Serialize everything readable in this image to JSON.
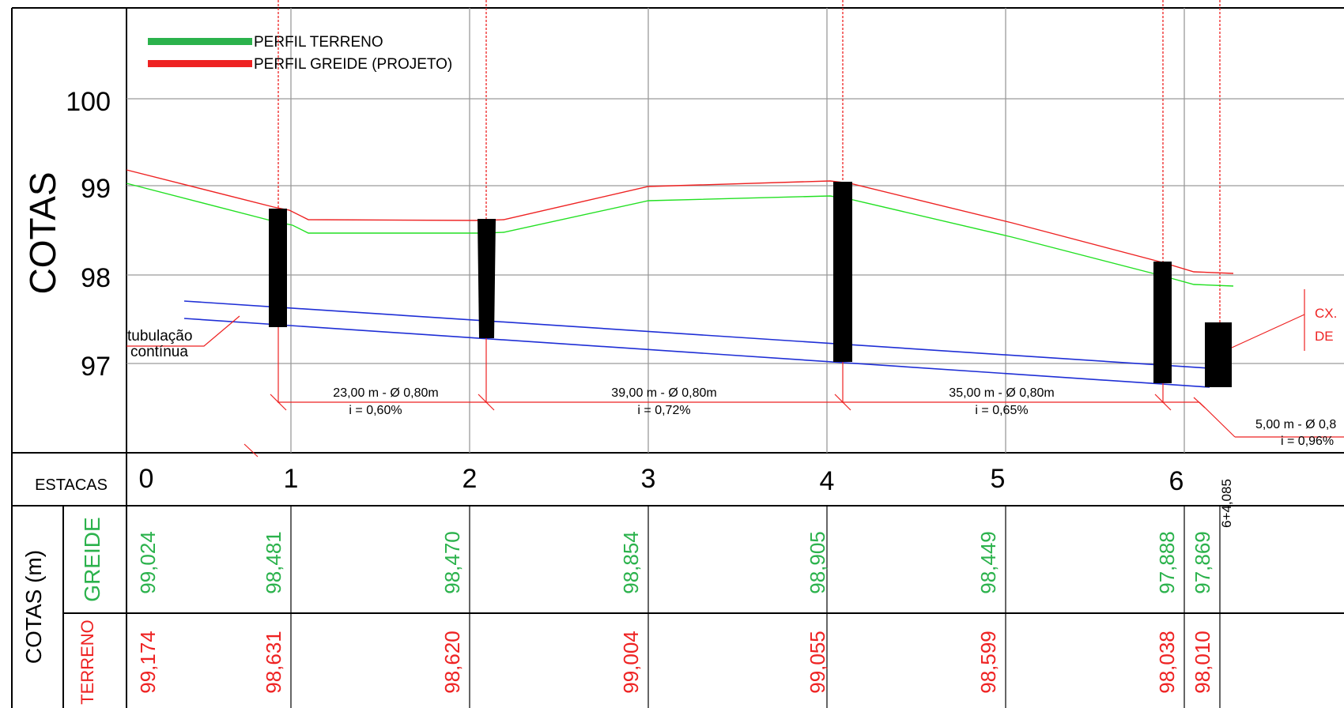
{
  "legend": {
    "terreno_label": "PERFIL TERRENO",
    "greide_label": "PERFIL GREIDE (PROJETO)",
    "terreno_color": "#2bb24c",
    "greide_color": "#ee2222"
  },
  "axis": {
    "cotas_title": "COTAS",
    "ticks": [
      "100",
      "99",
      "98",
      "97"
    ]
  },
  "annotations": {
    "tubulacao_line1": "tubulação",
    "tubulacao_line2": "contínua",
    "cx_line1": "CX.",
    "cx_line2": "DE"
  },
  "segments": [
    {
      "label": "23,00 m - Ø 0,80m",
      "slope": "i = 0,60%"
    },
    {
      "label": "39,00 m - Ø 0,80m",
      "slope": "i = 0,72%"
    },
    {
      "label": "35,00 m - Ø 0,80m",
      "slope": "i = 0,65%"
    },
    {
      "label": "5,00 m - Ø 0,8",
      "slope": "i = 0,96%"
    }
  ],
  "table": {
    "estacas_header": "ESTACAS",
    "estacas": [
      "0",
      "1",
      "2",
      "3",
      "4",
      "5",
      "6"
    ],
    "final_station": "6+4,085",
    "cotas_header": "COTAS (m)",
    "greide_header": "GREIDE",
    "terreno_header": "TERRENO",
    "greide_values": [
      "99,024",
      "98,481",
      "98,470",
      "98,854",
      "98,905",
      "98,449",
      "97,888",
      "97,869"
    ],
    "terreno_values": [
      "99,174",
      "98,631",
      "98,620",
      "99,004",
      "99,055",
      "98,599",
      "98,038",
      "98,010"
    ]
  },
  "colors": {
    "red": "#ee2222",
    "green": "#2bb24c",
    "blue": "#1f2fd6",
    "grid": "#9a9a9a"
  }
}
